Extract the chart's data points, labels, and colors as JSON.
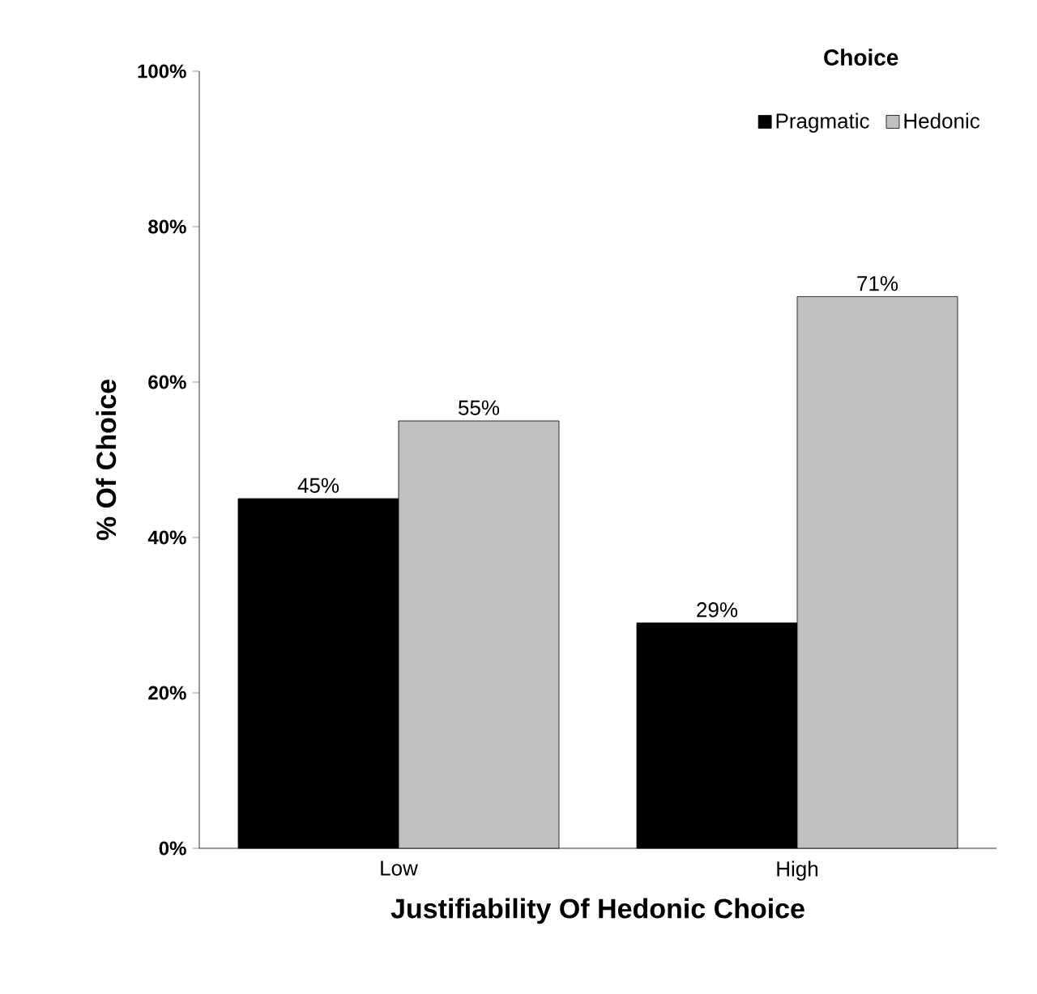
{
  "chart_data": {
    "type": "bar",
    "xlabel": "Justifiability Of Hedonic Choice",
    "ylabel": "% Of Choice",
    "legend_title": "Choice",
    "legend": "top right",
    "categories": [
      "Low",
      "High"
    ],
    "series": [
      {
        "name": "Pragmatic",
        "color": "#000000",
        "values": [
          45,
          29
        ],
        "value_labels": [
          "45%",
          "29%"
        ]
      },
      {
        "name": "Hedonic",
        "color": "#c0c0c0",
        "values": [
          55,
          71
        ],
        "value_labels": [
          "55%",
          "71%"
        ]
      }
    ],
    "ylim": [
      0,
      100
    ],
    "yticks": [
      {
        "value": 0,
        "label": "0%"
      },
      {
        "value": 20,
        "label": "20%"
      },
      {
        "value": 40,
        "label": "40%"
      },
      {
        "value": 60,
        "label": "60%"
      },
      {
        "value": 80,
        "label": "80%"
      },
      {
        "value": 100,
        "label": "100%"
      }
    ]
  }
}
